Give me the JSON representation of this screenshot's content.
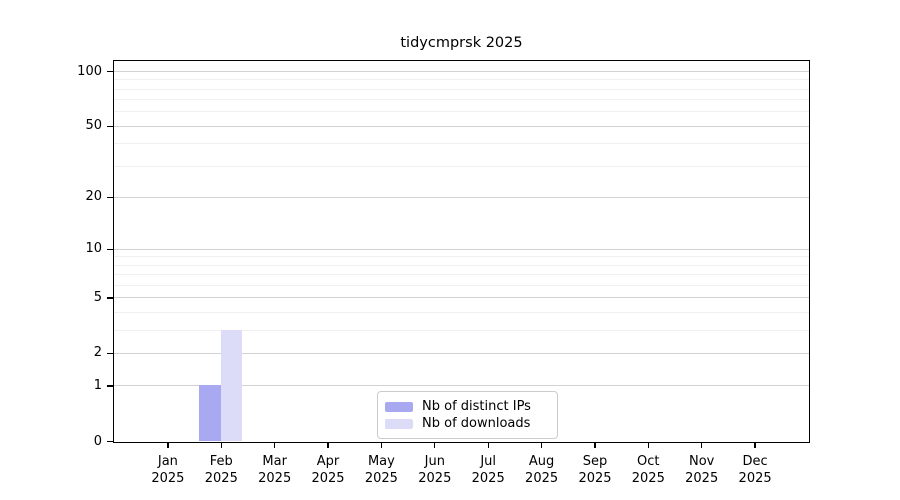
{
  "chart_data": {
    "type": "bar",
    "title": "tidycmprsk 2025",
    "categories": [
      "Jan 2025",
      "Feb 2025",
      "Mar 2025",
      "Apr 2025",
      "May 2025",
      "Jun 2025",
      "Jul 2025",
      "Aug 2025",
      "Sep 2025",
      "Oct 2025",
      "Nov 2025",
      "Dec 2025"
    ],
    "series": [
      {
        "name": "Nb of distinct IPs",
        "color": "#a9a9f2",
        "values": [
          0,
          1,
          0,
          0,
          0,
          0,
          0,
          0,
          0,
          0,
          0,
          0
        ]
      },
      {
        "name": "Nb of downloads",
        "color": "#dcdcf8",
        "values": [
          0,
          3,
          0,
          0,
          0,
          0,
          0,
          0,
          0,
          0,
          0,
          0
        ]
      }
    ],
    "xlabel": "",
    "ylabel": "",
    "ylim": [
      0,
      100
    ],
    "yscale": "log1p",
    "yticks": [
      0,
      1,
      2,
      5,
      10,
      20,
      50,
      100
    ],
    "grid": "horizontal, minor and major gridlines",
    "legend_position": "lower center, inside plot"
  },
  "colors": {
    "grid_major": "#d2d2d2",
    "grid_minor": "#f0f0f0",
    "axis": "#000000",
    "legend_border": "#cccccc",
    "background": "#ffffff"
  }
}
